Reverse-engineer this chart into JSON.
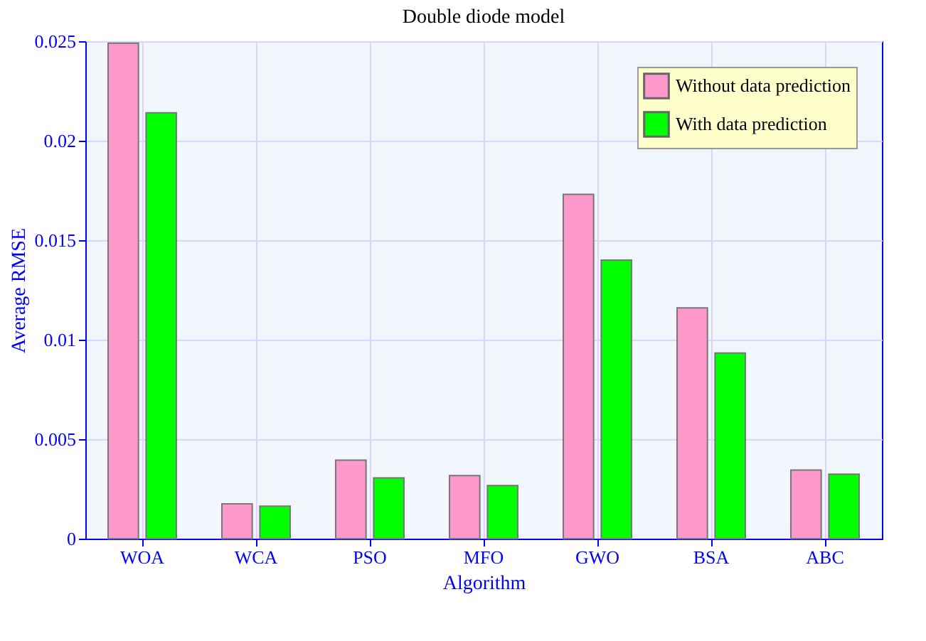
{
  "chart_data": {
    "type": "bar",
    "title": "Double diode model",
    "xlabel": "Algorithm",
    "ylabel": "Average RMSE",
    "categories": [
      "WOA",
      "WCA",
      "PSO",
      "MFO",
      "GWO",
      "BSA",
      "ABC"
    ],
    "series": [
      {
        "name": "Without data prediction",
        "color": "#ff99cc",
        "values": [
          0.0249,
          0.00175,
          0.00395,
          0.00317,
          0.0173,
          0.0116,
          0.00345
        ]
      },
      {
        "name": "With data prediction",
        "color": "#00ff00",
        "values": [
          0.0214,
          0.00163,
          0.00305,
          0.00267,
          0.014,
          0.00933,
          0.00324
        ]
      }
    ],
    "ylim": [
      0,
      0.025
    ],
    "yticks": [
      0,
      0.005,
      0.01,
      0.015,
      0.02,
      0.025
    ],
    "grid": true,
    "legend": "top right"
  }
}
